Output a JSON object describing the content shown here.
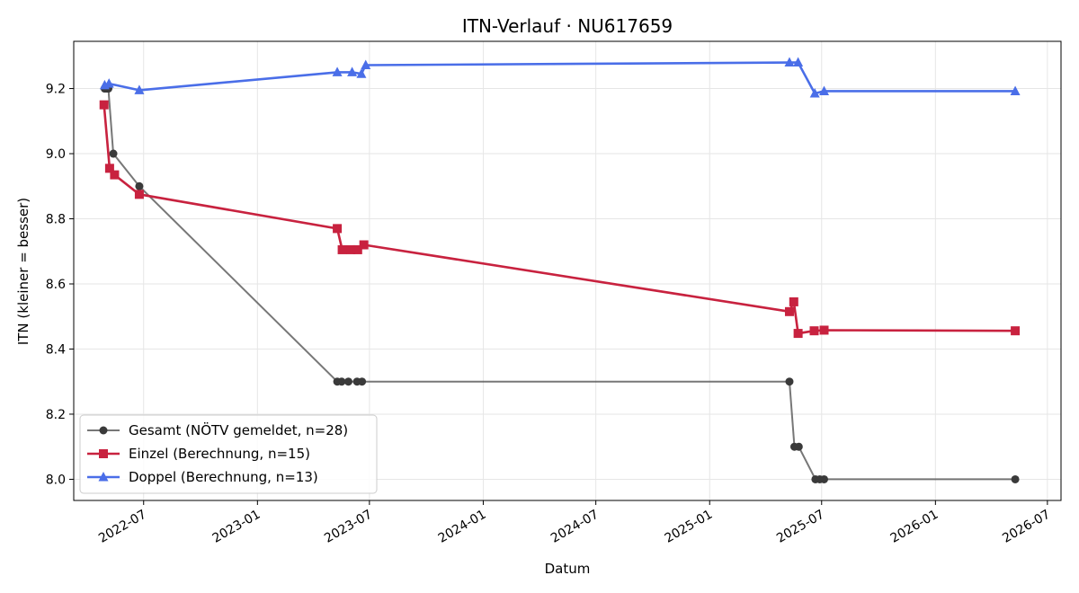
{
  "chart_data": {
    "type": "line",
    "title": "ITN-Verlauf · NU617659",
    "xlabel": "Datum",
    "ylabel": "ITN  (kleiner = besser)",
    "xlim": [
      "2022-03-10",
      "2026-07-23"
    ],
    "ylim": [
      7.935,
      9.345
    ],
    "x_ticks": [
      "2022-07-01",
      "2023-01-01",
      "2023-07-01",
      "2024-01-01",
      "2024-07-01",
      "2025-01-01",
      "2025-07-01",
      "2026-01-01",
      "2026-07-01"
    ],
    "x_tick_labels": [
      "2022-07",
      "2023-01",
      "2023-07",
      "2024-01",
      "2024-07",
      "2025-01",
      "2025-07",
      "2026-01",
      "2026-07"
    ],
    "y_ticks": [
      8.0,
      8.2,
      8.4,
      8.6,
      8.8,
      9.0,
      9.2
    ],
    "y_tick_labels": [
      "8.0",
      "8.2",
      "8.4",
      "8.6",
      "8.8",
      "9.0",
      "9.2"
    ],
    "grid": true,
    "legend_position": "lower-left",
    "series": [
      {
        "name": "Gesamt (NÖTV gemeldet, n=28)",
        "color": "#555555",
        "marker": "circle",
        "points": [
          [
            "2022-04-29",
            9.2
          ],
          [
            "2022-04-30",
            9.2
          ],
          [
            "2022-05-01",
            9.2
          ],
          [
            "2022-05-02",
            9.2
          ],
          [
            "2022-05-04",
            9.2
          ],
          [
            "2022-05-05",
            9.2
          ],
          [
            "2022-05-13",
            9.0
          ],
          [
            "2022-06-24",
            8.9
          ],
          [
            "2023-05-10",
            8.3
          ],
          [
            "2023-05-17",
            8.3
          ],
          [
            "2023-05-28",
            8.3
          ],
          [
            "2023-06-11",
            8.3
          ],
          [
            "2023-06-19",
            8.3
          ],
          [
            "2025-05-10",
            8.3
          ],
          [
            "2025-05-18",
            8.1
          ],
          [
            "2025-05-25",
            8.1
          ],
          [
            "2025-06-21",
            8.0
          ],
          [
            "2025-06-28",
            8.0
          ],
          [
            "2025-07-05",
            8.0
          ],
          [
            "2026-05-10",
            8.0
          ]
        ]
      },
      {
        "name": "Einzel (Berechnung, n=15)",
        "color": "#c8223f",
        "marker": "square",
        "points": [
          [
            "2022-04-28",
            9.15
          ],
          [
            "2022-05-07",
            8.955
          ],
          [
            "2022-05-15",
            8.935
          ],
          [
            "2022-06-24",
            8.875
          ],
          [
            "2023-05-10",
            8.77
          ],
          [
            "2023-05-18",
            8.705
          ],
          [
            "2023-06-01",
            8.705
          ],
          [
            "2023-06-12",
            8.705
          ],
          [
            "2023-06-22",
            8.72
          ],
          [
            "2025-05-10",
            8.515
          ],
          [
            "2025-05-17",
            8.545
          ],
          [
            "2025-05-24",
            8.448
          ],
          [
            "2025-06-19",
            8.456
          ],
          [
            "2025-07-05",
            8.458
          ],
          [
            "2026-05-10",
            8.456
          ]
        ]
      },
      {
        "name": "Doppel (Berechnung, n=13)",
        "color": "#4a6ee8",
        "marker": "triangle",
        "points": [
          [
            "2022-04-29",
            9.21
          ],
          [
            "2022-05-06",
            9.215
          ],
          [
            "2022-06-24",
            9.195
          ],
          [
            "2023-05-10",
            9.25
          ],
          [
            "2023-06-03",
            9.25
          ],
          [
            "2023-06-18",
            9.245
          ],
          [
            "2023-06-25",
            9.272
          ],
          [
            "2025-05-10",
            9.28
          ],
          [
            "2025-05-24",
            9.28
          ],
          [
            "2025-06-20",
            9.185
          ],
          [
            "2025-07-05",
            9.192
          ],
          [
            "2026-05-10",
            9.192
          ]
        ]
      }
    ]
  }
}
